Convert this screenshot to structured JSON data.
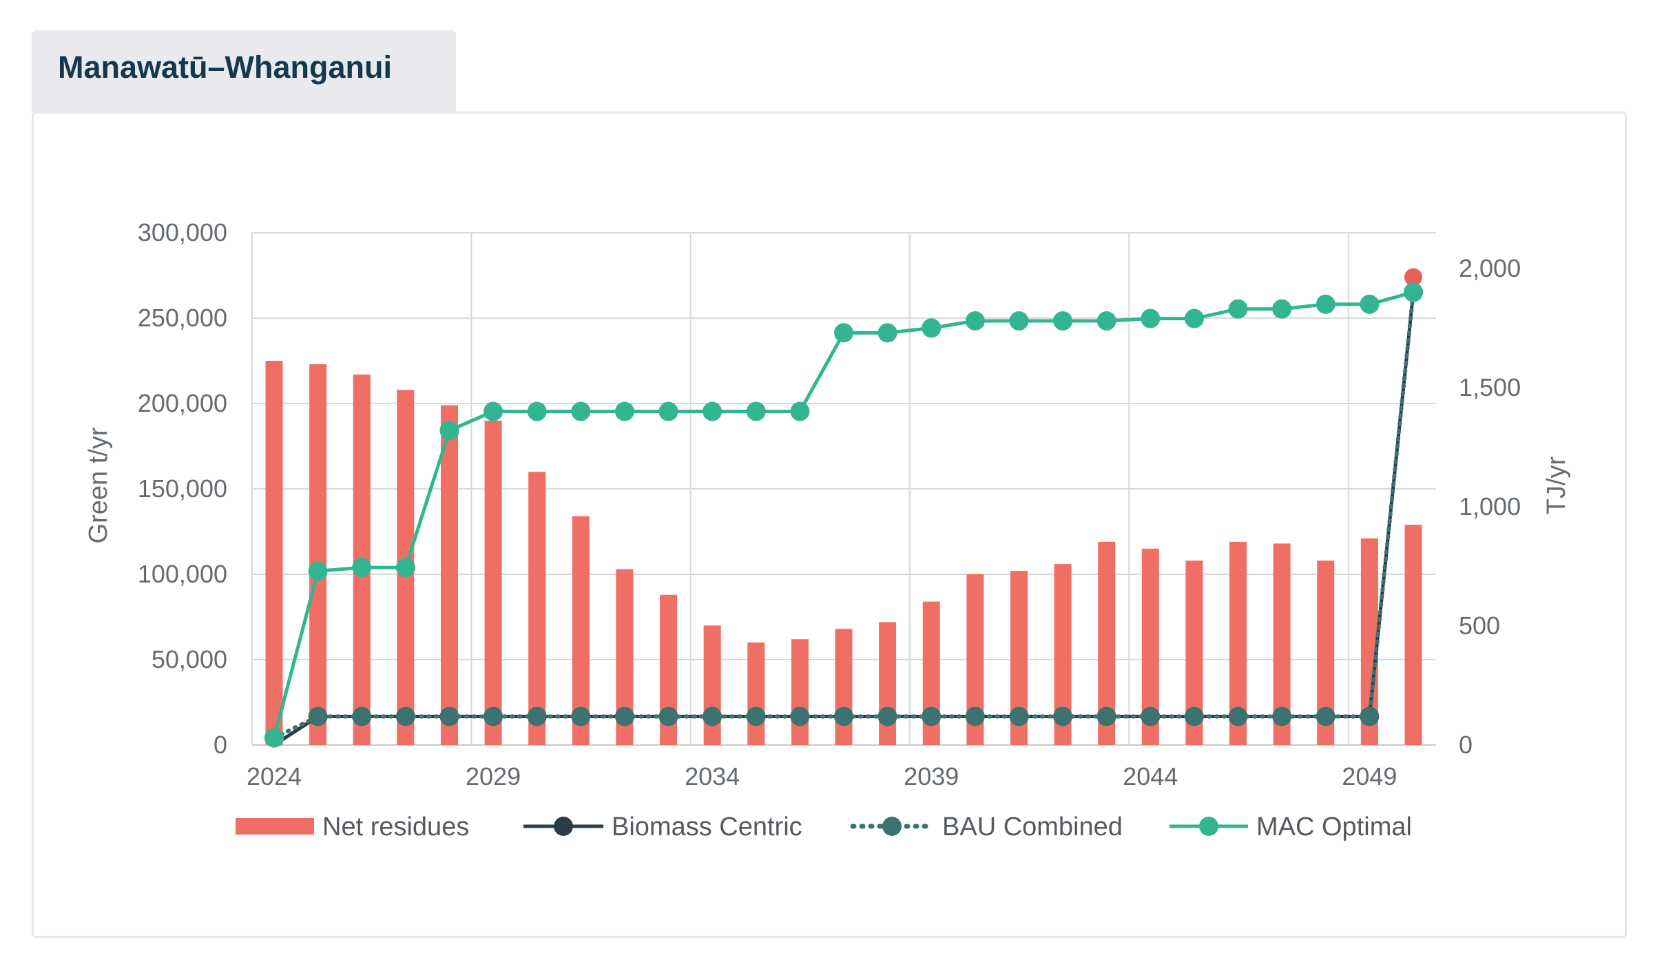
{
  "region_tab": {
    "title": "Manawatū–Whanganui"
  },
  "colors": {
    "net_residues": "#ef6f65",
    "biomass_centric": "#2b3d48",
    "bau_combined": "#3c7370",
    "mac_optimal": "#34b592",
    "grid": "#d9d9d9",
    "last_point": "#e8605a"
  },
  "chart_data": {
    "type": "bar",
    "x": [
      2024,
      2025,
      2026,
      2027,
      2028,
      2029,
      2030,
      2031,
      2032,
      2033,
      2034,
      2035,
      2036,
      2037,
      2038,
      2039,
      2040,
      2041,
      2042,
      2043,
      2044,
      2045,
      2046,
      2047,
      2048,
      2049,
      2050
    ],
    "x_tick_labels": [
      "2024",
      "2029",
      "2034",
      "2039",
      "2044",
      "2049"
    ],
    "xlabel": "",
    "ylabel_left": "Green t/yr",
    "ylabel_right": "TJ/yr",
    "ylim_left": [
      0,
      300000
    ],
    "ylim_right": [
      0,
      2150
    ],
    "y_ticks_left": [
      "0",
      "50,000",
      "100,000",
      "150,000",
      "200,000",
      "250,000",
      "300,000"
    ],
    "y_ticks_right": [
      "0",
      "500",
      "1,000",
      "1,500",
      "2,000"
    ],
    "grid": true,
    "legend_position": "bottom",
    "series": [
      {
        "name": "Net residues",
        "kind": "bar",
        "axis": "left",
        "values": [
          225000,
          223000,
          217000,
          208000,
          199000,
          190000,
          160000,
          134000,
          103000,
          88000,
          70000,
          60000,
          62000,
          68000,
          72000,
          84000,
          100000,
          102000,
          106000,
          119000,
          115000,
          108000,
          119000,
          118000,
          108000,
          121000,
          129000
        ]
      },
      {
        "name": "Biomass Centric",
        "kind": "line",
        "axis": "right",
        "values": [
          0,
          120,
          120,
          120,
          120,
          120,
          120,
          120,
          120,
          120,
          120,
          120,
          120,
          120,
          120,
          120,
          120,
          120,
          120,
          120,
          120,
          120,
          120,
          120,
          120,
          120,
          1900
        ]
      },
      {
        "name": "BAU Combined",
        "kind": "dotted-line",
        "axis": "right",
        "values": [
          30,
          120,
          120,
          120,
          120,
          120,
          120,
          120,
          120,
          120,
          120,
          120,
          120,
          120,
          120,
          120,
          120,
          120,
          120,
          120,
          120,
          120,
          120,
          120,
          120,
          120,
          1900
        ]
      },
      {
        "name": "MAC Optimal",
        "kind": "line",
        "axis": "right",
        "values": [
          30,
          730,
          745,
          745,
          1320,
          1400,
          1400,
          1400,
          1400,
          1400,
          1400,
          1400,
          1400,
          1730,
          1730,
          1750,
          1780,
          1780,
          1780,
          1780,
          1790,
          1790,
          1830,
          1830,
          1850,
          1850,
          1900
        ]
      }
    ]
  }
}
